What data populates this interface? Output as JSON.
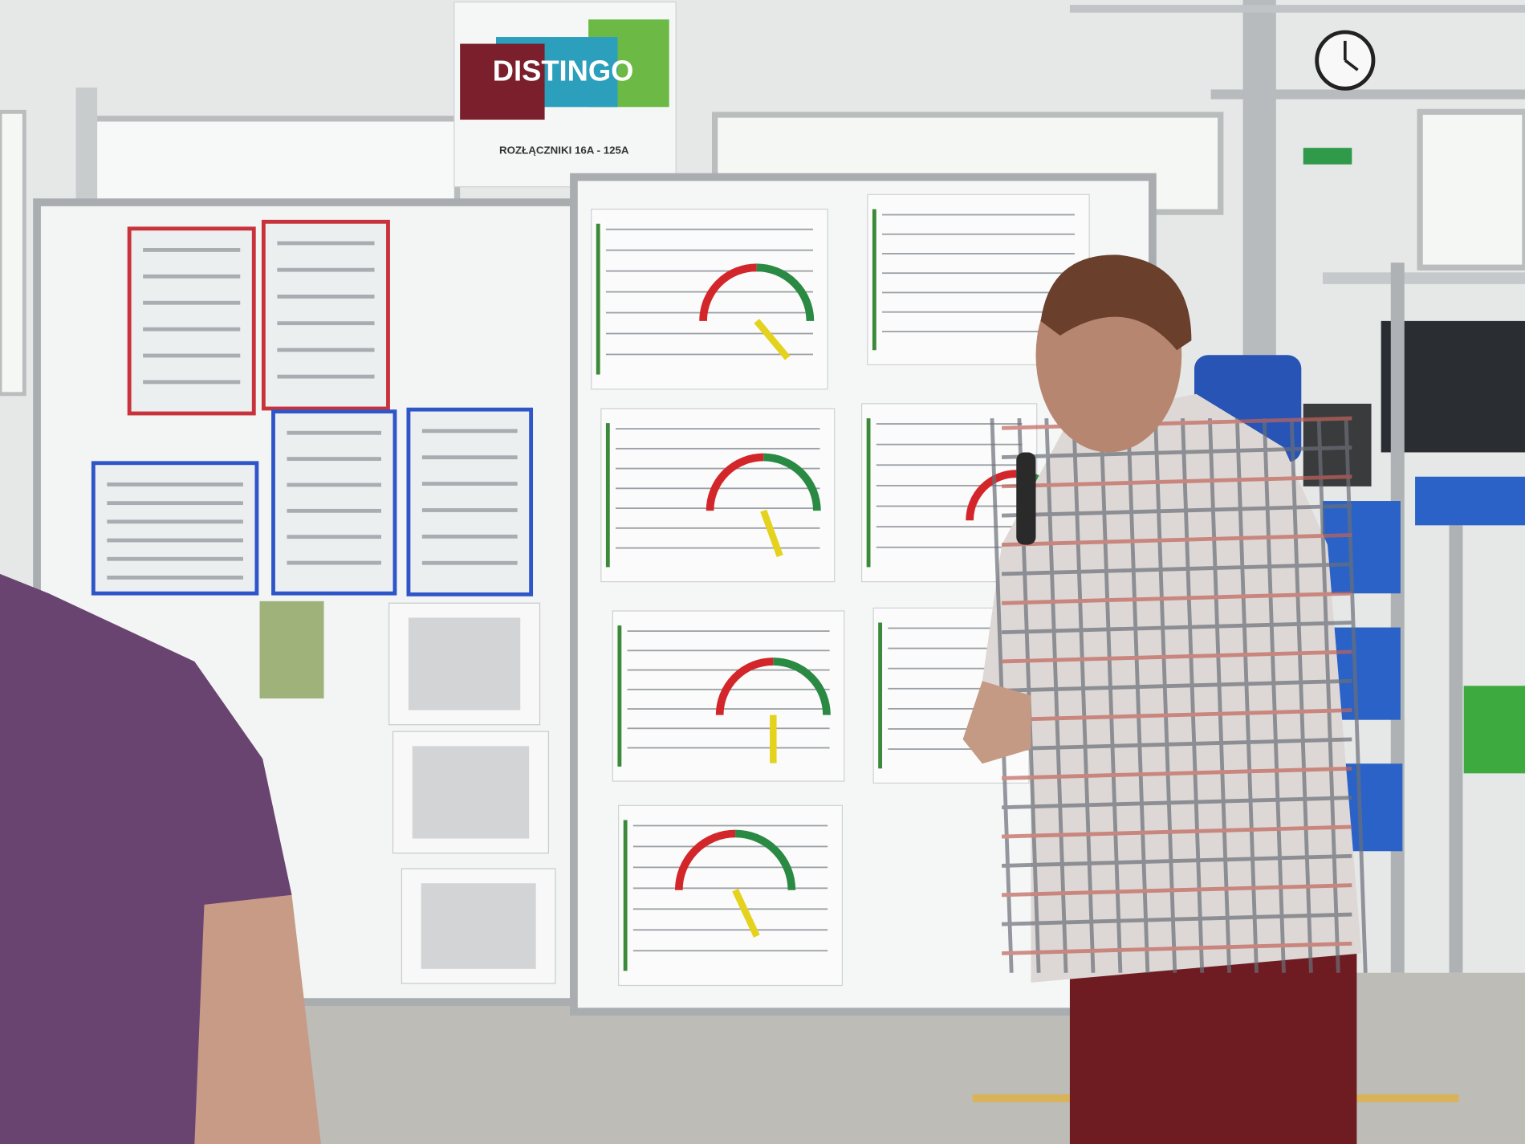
{
  "sign": {
    "brand": "DISTINGO",
    "subtitle": "ROZŁĄCZNIKI 16A - 125A"
  }
}
